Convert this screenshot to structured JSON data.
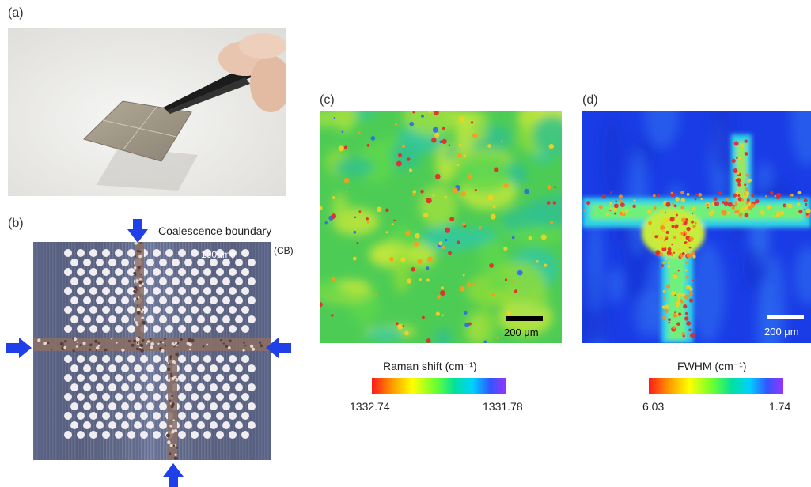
{
  "panels": {
    "a": {
      "label": "(a)"
    },
    "b": {
      "label": "(b)",
      "boundary_label": "Coalescence boundary",
      "boundary_abbr": "(CB)",
      "hole_size": "100μmϕ",
      "arrow_color": "#1f3fe8"
    },
    "c": {
      "label": "(c)",
      "scale_bar": "200 μm",
      "colorbar_title": "Raman shift (cm⁻¹)",
      "colorbar_min": "1332.74",
      "colorbar_max": "1331.78"
    },
    "d": {
      "label": "(d)",
      "scale_bar": "200 μm",
      "colorbar_title": "FWHM (cm⁻¹)",
      "colorbar_min": "6.03",
      "colorbar_max": "1.74"
    }
  },
  "colors": {
    "raman_bg": "#4dcc55",
    "fwhm_bg": "#1a3ce6",
    "hotspot": "#e8262a"
  }
}
